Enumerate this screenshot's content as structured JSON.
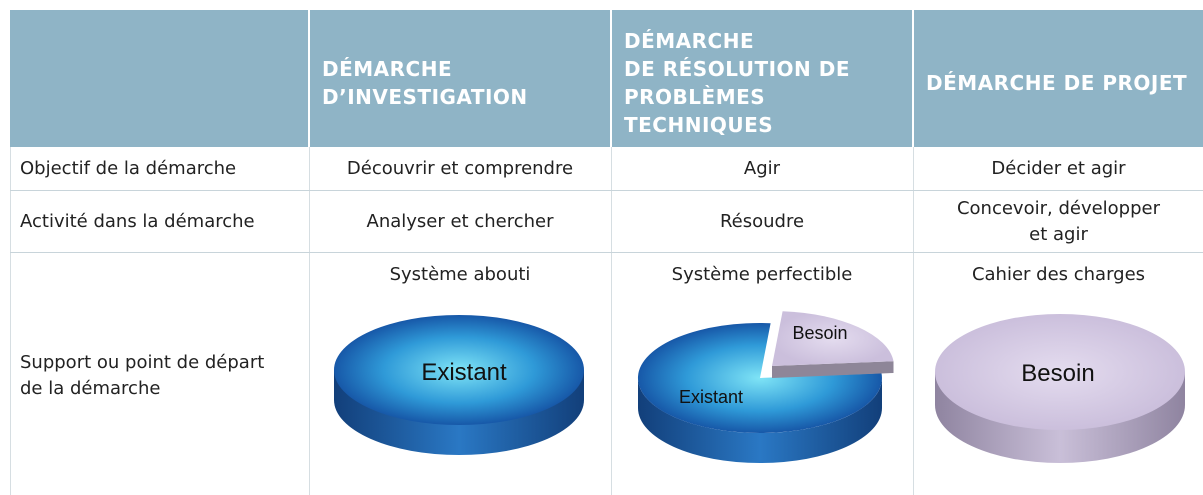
{
  "table": {
    "header": {
      "columns": [
        {
          "lines": [
            "DÉMARCHE",
            "D’INVESTIGATION"
          ]
        },
        {
          "lines": [
            "DÉMARCHE",
            "DE RÉSOLUTION DE",
            "PROBLÈMES",
            "TECHNIQUES"
          ]
        },
        {
          "lines": [
            "DÉMARCHE DE PROJET"
          ]
        }
      ]
    },
    "rows": [
      {
        "label": {
          "lines": [
            "Objectif de la démarche"
          ]
        },
        "cells": [
          {
            "lines": [
              "Découvrir et comprendre"
            ]
          },
          {
            "lines": [
              "Agir"
            ]
          },
          {
            "lines": [
              "Décider et agir"
            ]
          }
        ]
      },
      {
        "label": {
          "lines": [
            "Activité dans la démarche"
          ]
        },
        "cells": [
          {
            "lines": [
              "Analyser et chercher"
            ]
          },
          {
            "lines": [
              "Résoudre"
            ]
          },
          {
            "lines": [
              "Concevoir, développer",
              "et agir"
            ]
          }
        ]
      },
      {
        "label": {
          "lines": [
            "Support ou point de départ",
            "de la démarche"
          ]
        },
        "cells": [
          {
            "title": "Système abouti",
            "labels": [
              "Existant"
            ]
          },
          {
            "title": "Système perfectible",
            "labels": [
              "Besoin",
              "Existant"
            ]
          },
          {
            "title": "Cahier des charges",
            "labels": [
              "Besoin"
            ]
          }
        ]
      }
    ]
  }
}
